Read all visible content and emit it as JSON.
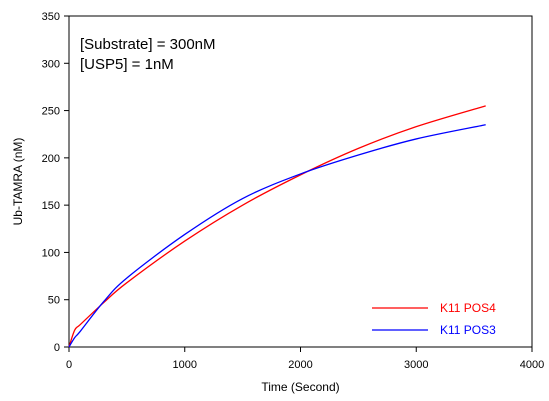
{
  "chart_data": {
    "type": "line",
    "xlabel": "Time (Second)",
    "ylabel": "Ub-TAMRA (nM)",
    "xlim": [
      0,
      4000
    ],
    "ylim": [
      0,
      350
    ],
    "x_ticks": [
      0,
      1000,
      2000,
      3000,
      4000
    ],
    "y_ticks": [
      0,
      50,
      100,
      150,
      200,
      250,
      300,
      350
    ],
    "grid": false,
    "legend_position": "bottom-right",
    "annotations": [
      "[Substrate] = 300nM",
      "[USP5] = 1nM"
    ],
    "series": [
      {
        "name": "K11 POS4",
        "color": "#ff0000",
        "x": [
          0,
          50,
          100,
          300,
          500,
          1000,
          1500,
          2000,
          2500,
          3000,
          3600
        ],
        "y": [
          0,
          18,
          24,
          47,
          68,
          112,
          150,
          182,
          210,
          233,
          255
        ]
      },
      {
        "name": "K11 POS3",
        "color": "#0000ff",
        "x": [
          0,
          50,
          100,
          300,
          500,
          1000,
          1500,
          2000,
          2500,
          3000,
          3600
        ],
        "y": [
          0,
          10,
          17,
          48,
          73,
          119,
          157,
          183,
          203,
          220,
          235
        ]
      }
    ]
  }
}
